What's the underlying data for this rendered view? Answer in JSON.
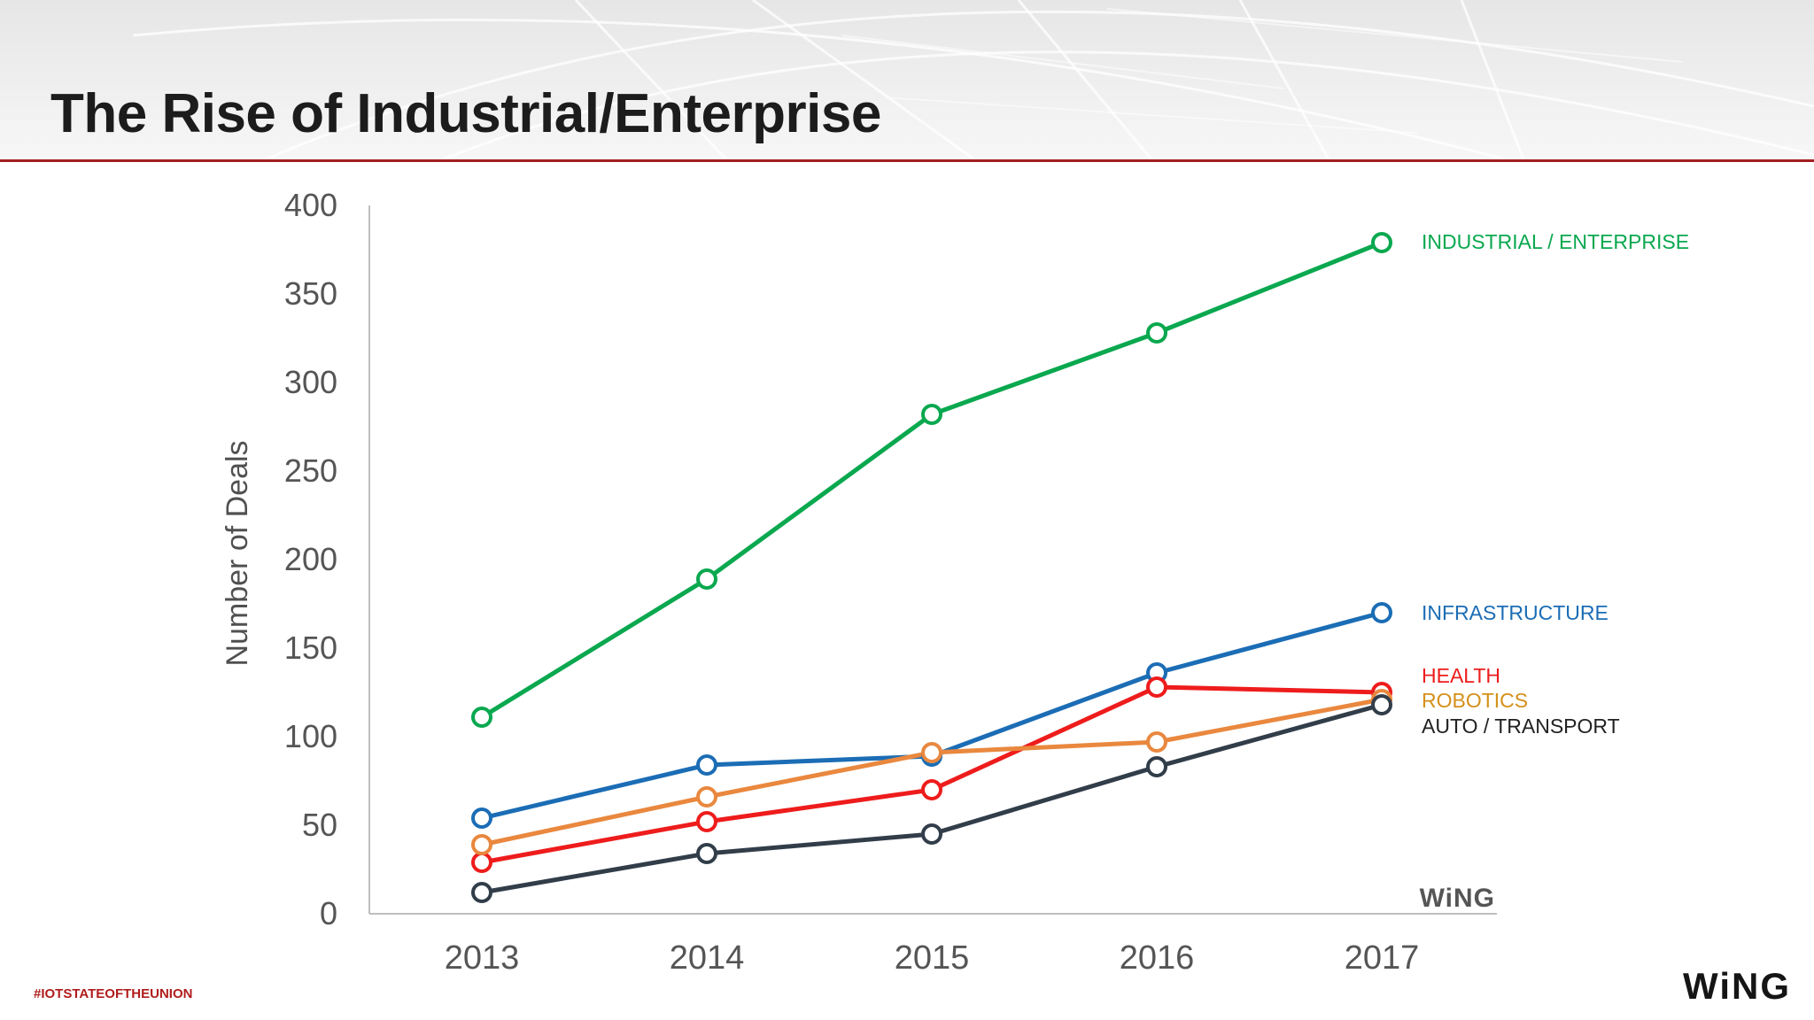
{
  "slide": {
    "title": "The Rise of Industrial/Enterprise",
    "hashtag": "#IOTSTATEOFTHEUNION",
    "logo_text": "WiNG"
  },
  "chart_data": {
    "type": "line",
    "title": "",
    "xlabel": "",
    "ylabel": "Number of Deals",
    "x": [
      "2013",
      "2014",
      "2015",
      "2016",
      "2017"
    ],
    "ylim": [
      0,
      400
    ],
    "yticks": [
      0,
      50,
      100,
      150,
      200,
      250,
      300,
      350,
      400
    ],
    "grid": false,
    "legend": "end-of-line labels",
    "watermark": "WiNG",
    "series": [
      {
        "name": "INDUSTRIAL / ENTERPRISE",
        "color": "#0aa84f",
        "values": [
          111,
          189,
          282,
          328,
          379
        ]
      },
      {
        "name": "INFRASTRUCTURE",
        "color": "#1b6db5",
        "values": [
          54,
          84,
          89,
          136,
          170
        ]
      },
      {
        "name": "HEALTH",
        "color": "#ee1c1c",
        "values": [
          29,
          52,
          70,
          128,
          125
        ]
      },
      {
        "name": "ROBOTICS",
        "color": "#e9883e",
        "values": [
          39,
          66,
          91,
          97,
          121
        ]
      },
      {
        "name": "AUTO / TRANSPORT",
        "color": "#323d4a",
        "values": [
          12,
          34,
          45,
          83,
          118
        ]
      }
    ],
    "label_colors": {
      "INDUSTRIAL / ENTERPRISE": "#0aa84f",
      "INFRASTRUCTURE": "#1b6db5",
      "HEALTH": "#ee1c1c",
      "ROBOTICS": "#d4901a",
      "AUTO / TRANSPORT": "#222222"
    }
  }
}
